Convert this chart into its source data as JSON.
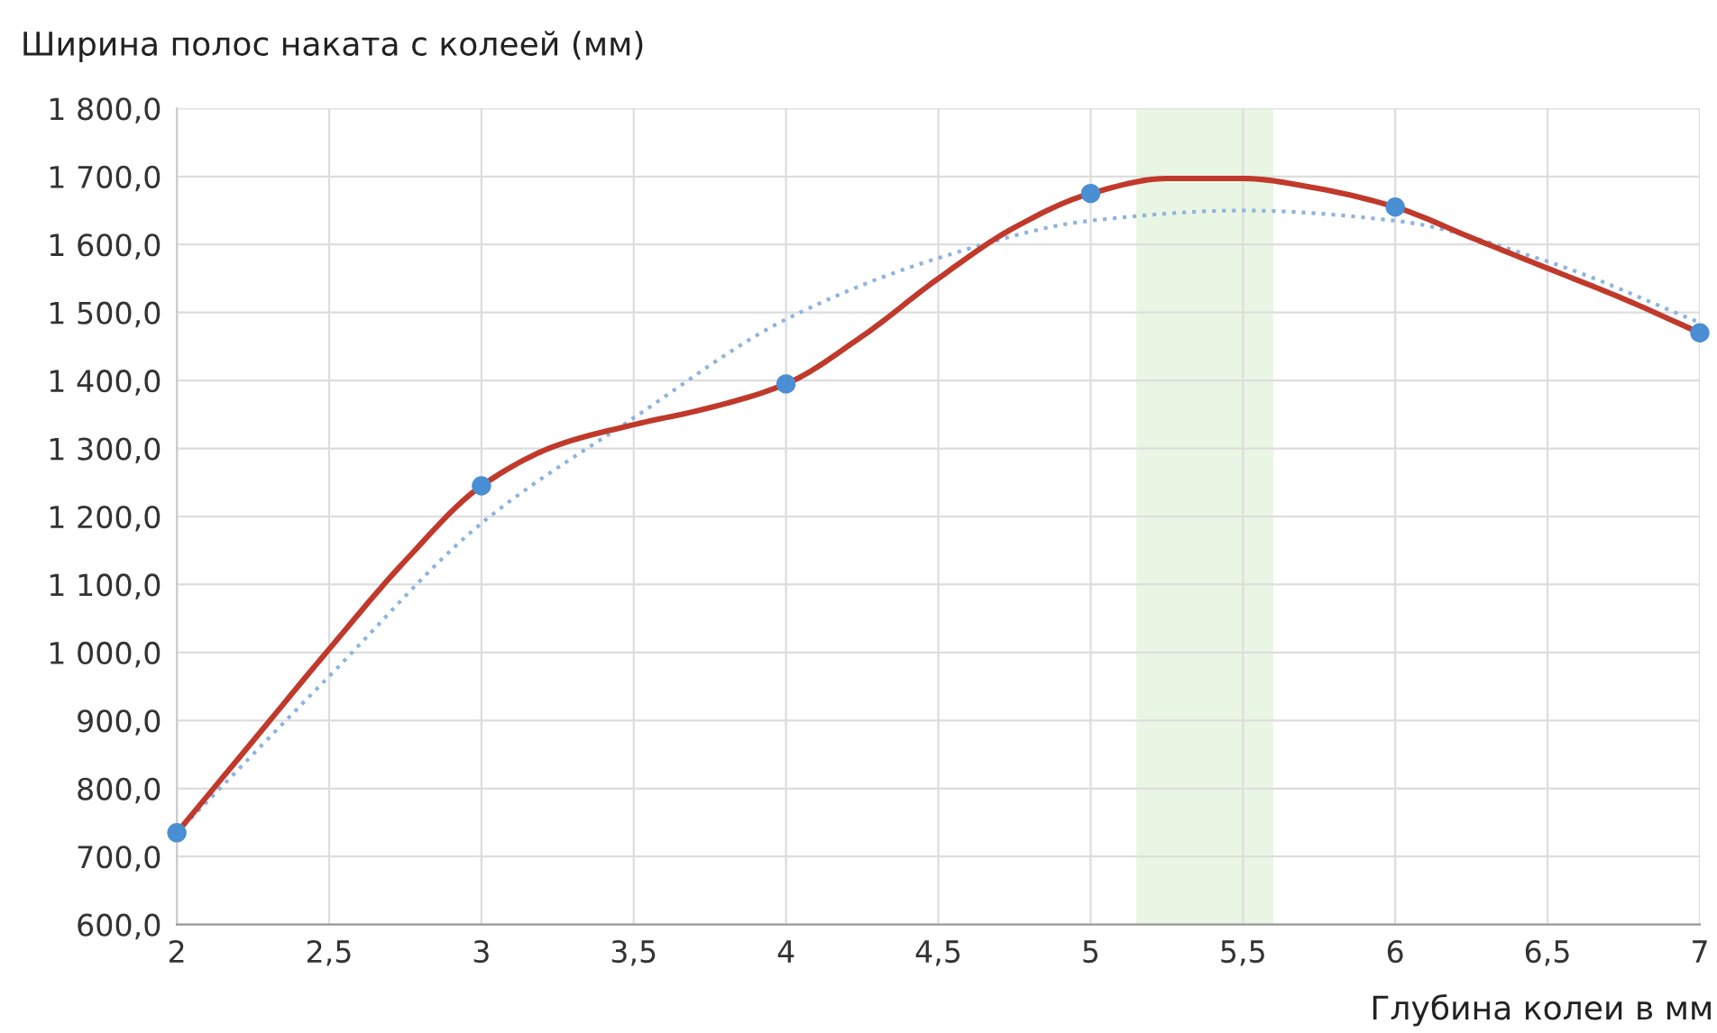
{
  "chart_data": {
    "type": "line",
    "ylabel": "Ширина полос наката с колеей (мм)",
    "xlabel": "Глубина колеи в мм",
    "xlim": [
      2,
      7
    ],
    "xticks": [
      2,
      {
        "value": 2.5,
        "label": "2,5"
      },
      3,
      {
        "value": 3.5,
        "label": "3,5"
      },
      4,
      {
        "value": 4.5,
        "label": "4,5"
      },
      5,
      {
        "value": 5.5,
        "label": "5,5"
      },
      6,
      {
        "value": 6.5,
        "label": "6,5"
      },
      7
    ],
    "ylim": [
      600,
      1800
    ],
    "yticks": [
      {
        "value": 600,
        "label": "600,0"
      },
      {
        "value": 700,
        "label": "700,0"
      },
      {
        "value": 800,
        "label": "800,0"
      },
      {
        "value": 900,
        "label": "900,0"
      },
      {
        "value": 1000,
        "label": "1 000,0"
      },
      {
        "value": 1100,
        "label": "1 100,0"
      },
      {
        "value": 1200,
        "label": "1 200,0"
      },
      {
        "value": 1300,
        "label": "1 300,0"
      },
      {
        "value": 1400,
        "label": "1 400,0"
      },
      {
        "value": 1500,
        "label": "1 500,0"
      },
      {
        "value": 1600,
        "label": "1 600,0"
      },
      {
        "value": 1700,
        "label": "1 700,0"
      },
      {
        "value": 1800,
        "label": "1 800,0"
      }
    ],
    "grid": true,
    "bands": [
      {
        "axis": "x",
        "from": 5.15,
        "to": 5.6,
        "color": "#eaf6e4"
      }
    ],
    "series": [
      {
        "color": "#8fb4dc",
        "line_style": "dotted",
        "marker": "none",
        "x": [
          2,
          2.5,
          3,
          3.5,
          4,
          4.5,
          5,
          5.5,
          6,
          6.5,
          7
        ],
        "values": [
          735,
          965,
          1190,
          1345,
          1490,
          1580,
          1635,
          1650,
          1635,
          1575,
          1485
        ]
      },
      {
        "color": "#c0392b",
        "line_style": "solid",
        "marker": "none",
        "x": [
          2,
          2.25,
          2.5,
          2.75,
          3,
          3.25,
          3.5,
          3.75,
          4,
          4.25,
          4.5,
          4.75,
          5,
          5.25,
          5.5,
          5.75,
          6,
          6.25,
          6.5,
          6.75,
          7
        ],
        "values": [
          735,
          870,
          1005,
          1135,
          1245,
          1305,
          1335,
          1360,
          1395,
          1465,
          1550,
          1625,
          1675,
          1697,
          1697,
          1682,
          1655,
          1610,
          1565,
          1520,
          1470
        ]
      },
      {
        "type": "scatter",
        "color": "#4a8fd4",
        "marker": "circle",
        "x": [
          2,
          3,
          4,
          5,
          6,
          7
        ],
        "values": [
          735,
          1245,
          1395,
          1675,
          1655,
          1470
        ]
      }
    ]
  }
}
